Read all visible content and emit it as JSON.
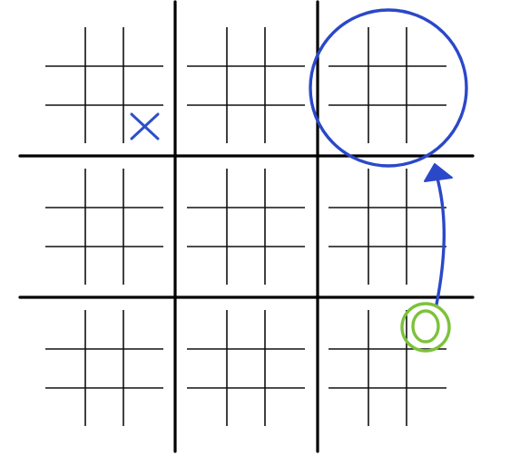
{
  "game": {
    "type": "ultimate-tic-tac-toe",
    "marks": [
      {
        "symbol": "X",
        "board": [
          0,
          0
        ],
        "cell": [
          2,
          2
        ],
        "color": "#2f4fc9"
      },
      {
        "symbol": "O",
        "board": [
          2,
          2
        ],
        "cell": [
          0,
          2
        ],
        "color": "#1f3fc4",
        "highlight": "#7cc23a"
      }
    ],
    "highlighted_board": [
      0,
      2
    ],
    "arrow": {
      "from_board": [
        2,
        2
      ],
      "to_board": [
        0,
        2
      ]
    },
    "colors": {
      "big_grid": "#000000",
      "small_grid": "#111111",
      "annotation_blue": "#2a48c8",
      "annotation_green": "#7cc23a"
    }
  }
}
